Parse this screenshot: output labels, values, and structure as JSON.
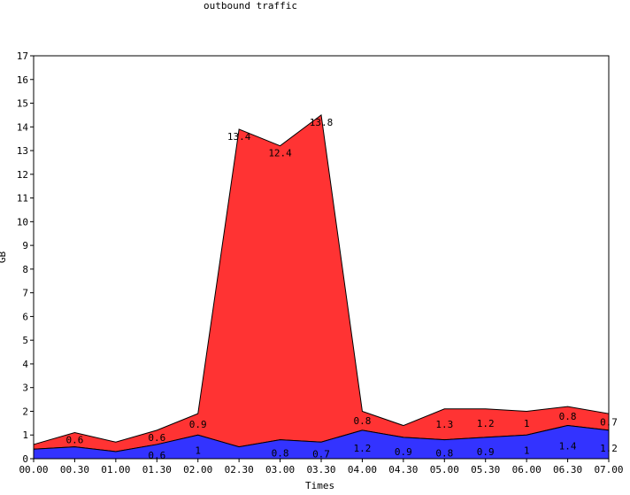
{
  "chart_data": {
    "type": "area",
    "stacked": true,
    "title": "outbound traffic",
    "xlabel": "Times",
    "ylabel": "GB",
    "ylim": [
      0,
      17
    ],
    "yticks": [
      "0",
      "1",
      "2",
      "3",
      "4",
      "5",
      "6",
      "7",
      "8",
      "9",
      "10",
      "11",
      "12",
      "13",
      "14",
      "15",
      "16",
      "17"
    ],
    "x": [
      "00.00",
      "00.30",
      "01.00",
      "01.30",
      "02.00",
      "02.30",
      "03.00",
      "03.30",
      "04.00",
      "04.30",
      "05.00",
      "05.30",
      "06.00",
      "06.30",
      "07.00"
    ],
    "grid": false,
    "colors": {
      "bottom": "#3333ff",
      "top": "#ff3333"
    },
    "series": [
      {
        "values": [
          0.4,
          0.5,
          0.3,
          0.6,
          1.0,
          0.5,
          0.8,
          0.7,
          1.2,
          0.9,
          0.8,
          0.9,
          1.0,
          1.4,
          1.2
        ],
        "labels": [
          "",
          "",
          "",
          "0.6",
          "1",
          "",
          "0.8",
          "0.7",
          "1.2",
          "0.9",
          "0.8",
          "0.9",
          "1",
          "1.4",
          "1.2"
        ]
      },
      {
        "values": [
          0.2,
          0.6,
          0.4,
          0.6,
          0.9,
          13.4,
          12.4,
          13.8,
          0.8,
          0.5,
          1.3,
          1.2,
          1.0,
          0.8,
          0.7
        ],
        "labels": [
          "",
          "0.6",
          "",
          "0.6",
          "0.9",
          "13.4",
          "12.4",
          "13.8",
          "0.8",
          "",
          "1.3",
          "1.2",
          "1",
          "0.8",
          "0.7"
        ]
      }
    ]
  }
}
